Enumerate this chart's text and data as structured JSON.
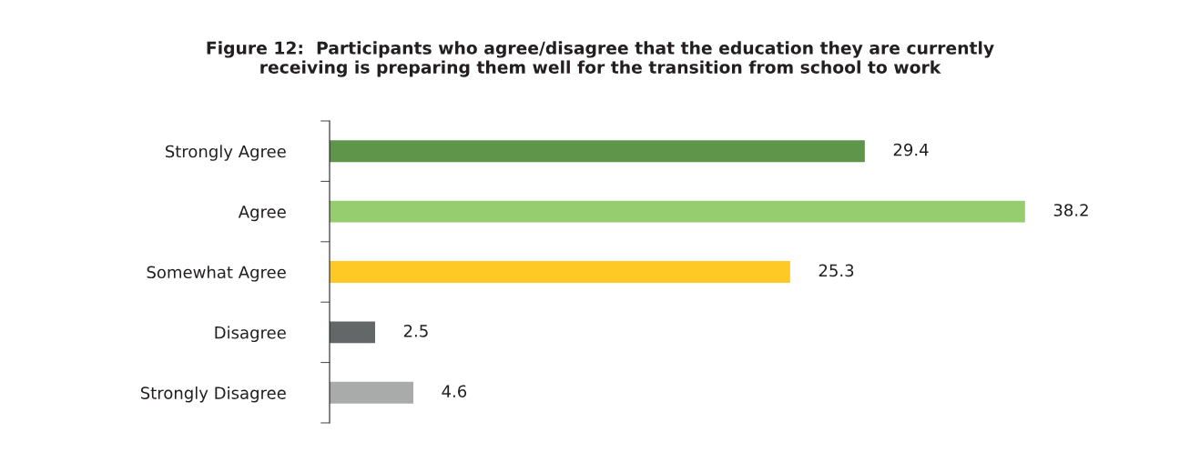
{
  "chart_data": {
    "type": "bar",
    "orientation": "horizontal",
    "title": "Figure 12:  Participants who agree/disagree that the education they are currently\nreceiving is preparing them well for the transition from school to work",
    "categories": [
      "Strongly Agree",
      "Agree",
      "Somewhat Agree",
      "Disagree",
      "Strongly Disagree"
    ],
    "values": [
      29.4,
      38.2,
      25.3,
      2.5,
      4.6
    ],
    "colors": [
      "#5f954b",
      "#96cd6f",
      "#fec925",
      "#646767",
      "#a9abab"
    ],
    "tick_labels": "y",
    "data_labels": true,
    "grid": false,
    "legend": false
  }
}
